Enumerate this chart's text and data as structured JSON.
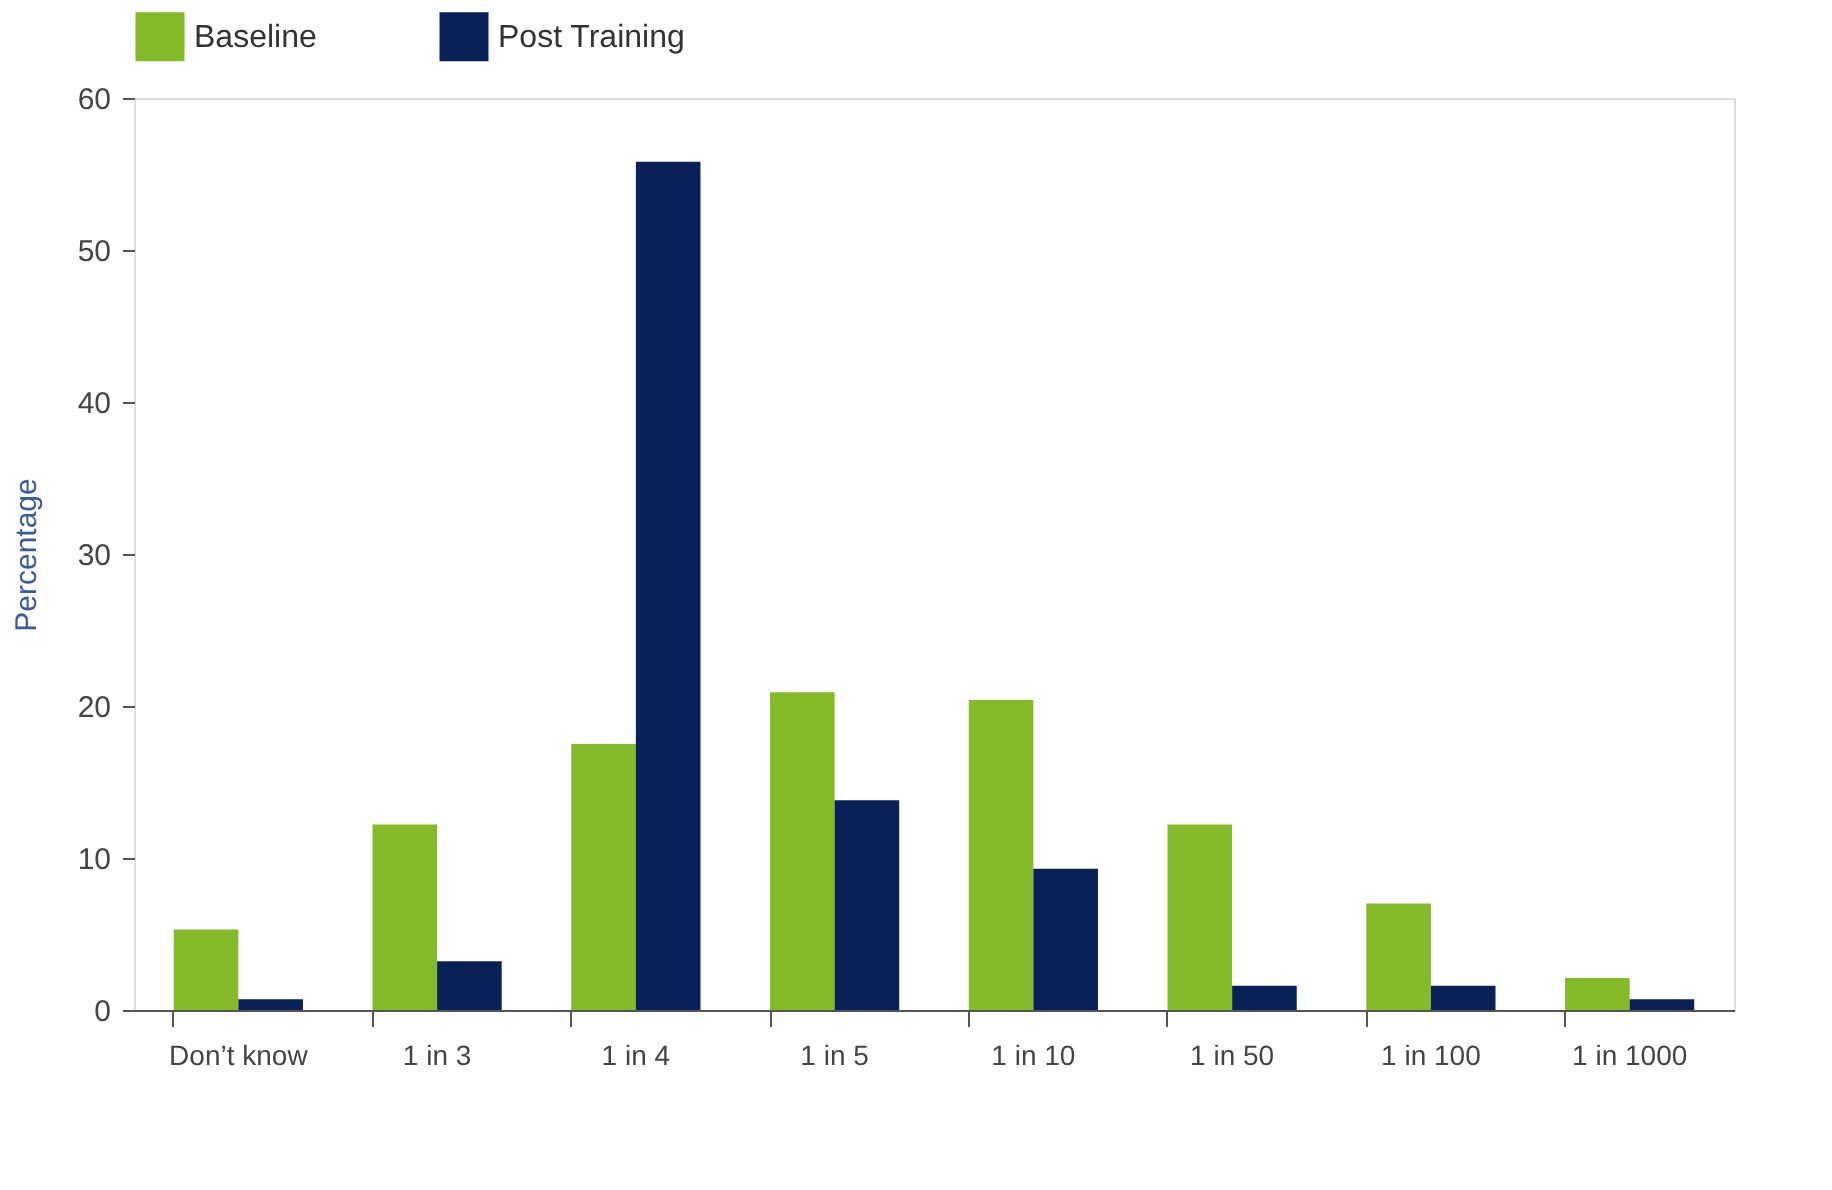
{
  "chart_data": {
    "type": "bar",
    "ylabel": "Percentage",
    "categories": [
      "Don’t know",
      "1 in 3",
      "1 in 4",
      "1 in 5",
      "1 in 10",
      "1 in 50",
      "1 in 100",
      "1 in 1000"
    ],
    "series": [
      {
        "name": "Baseline",
        "color": "#84b92a",
        "values": [
          5.3,
          12.2,
          17.5,
          20.9,
          20.4,
          12.2,
          7.0,
          2.1
        ]
      },
      {
        "name": "Post Training",
        "color": "#0a2158",
        "values": [
          0.7,
          3.2,
          55.8,
          13.8,
          9.3,
          1.6,
          1.6,
          0.7
        ]
      }
    ],
    "ylim": [
      0,
      60
    ],
    "yticks": [
      0,
      10,
      20,
      30,
      40,
      50,
      60
    ],
    "grid": false,
    "legend": "top"
  }
}
